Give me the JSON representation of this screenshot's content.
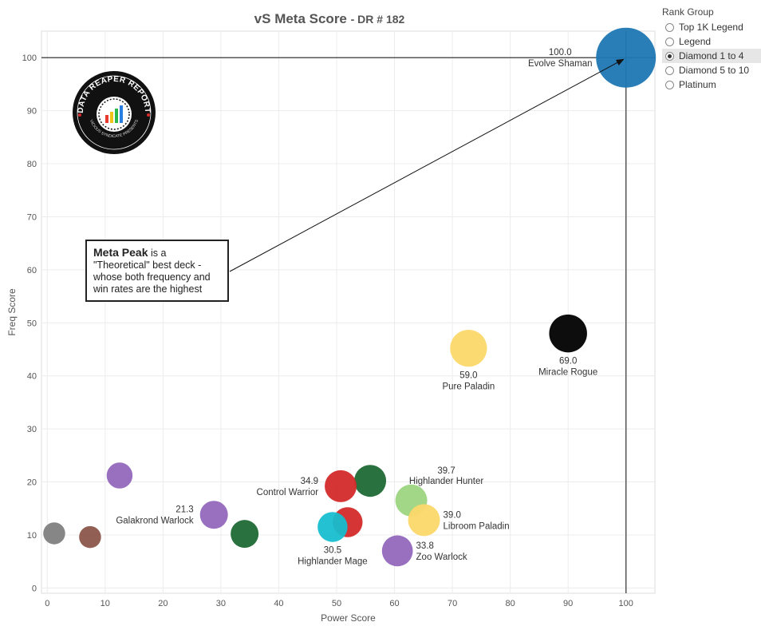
{
  "chart_data": {
    "type": "scatter",
    "title": "vS Meta Score",
    "subtitle": "DR # 182",
    "xlabel": "Power Score",
    "ylabel": "Freq Score",
    "xlim": [
      -1,
      105
    ],
    "ylim": [
      -1,
      105
    ],
    "xticks": [
      0,
      10,
      20,
      30,
      40,
      50,
      60,
      70,
      80,
      90,
      100
    ],
    "yticks": [
      0,
      10,
      20,
      30,
      40,
      50,
      60,
      70,
      80,
      90,
      100
    ],
    "reference_lines": {
      "x": 100,
      "y": 100
    },
    "points": [
      {
        "x": 100,
        "y": 100,
        "color": "#1f77b4",
        "size": 3.0,
        "name": "Evolve Shaman",
        "score": "100.0",
        "label_pos": "upper-left"
      },
      {
        "x": 90,
        "y": 48,
        "color": "#000000",
        "size": 1.9,
        "name": "Miracle Rogue",
        "score": "69.0",
        "label_pos": "below"
      },
      {
        "x": 72.8,
        "y": 45.2,
        "color": "#fcd86a",
        "size": 1.85,
        "name": "Pure Paladin",
        "score": "59.0",
        "label_pos": "below"
      },
      {
        "x": 55.8,
        "y": 20.2,
        "color": "#1e6a35",
        "size": 1.6,
        "name": "",
        "score": "",
        "label_pos": "none"
      },
      {
        "x": 62.9,
        "y": 16.5,
        "color": "#9cd57f",
        "size": 1.6,
        "name": "Highlander Hunter",
        "score": "39.7",
        "label_pos": "above-right"
      },
      {
        "x": 50.7,
        "y": 19.2,
        "color": "#d42a2a",
        "size": 1.6,
        "name": "Control Warrior",
        "score": "34.9",
        "label_pos": "left"
      },
      {
        "x": 65.1,
        "y": 12.8,
        "color": "#fcd86a",
        "size": 1.6,
        "name": "Libroom Paladin",
        "score": "39.0",
        "label_pos": "right"
      },
      {
        "x": 51.9,
        "y": 12.4,
        "color": "#d42a2a",
        "size": 1.5,
        "name": "",
        "score": "",
        "label_pos": "none"
      },
      {
        "x": 49.3,
        "y": 11.5,
        "color": "#17becf",
        "size": 1.5,
        "name": "Highlander Mage",
        "score": "30.5",
        "label_pos": "below"
      },
      {
        "x": 60.5,
        "y": 7.0,
        "color": "#9467bd",
        "size": 1.55,
        "name": "Zoo Warlock",
        "score": "33.8",
        "label_pos": "right"
      },
      {
        "x": 28.8,
        "y": 13.8,
        "color": "#9467bd",
        "size": 1.4,
        "name": "Galakrond Warlock",
        "score": "21.3",
        "label_pos": "left"
      },
      {
        "x": 34.1,
        "y": 10.2,
        "color": "#1e6a35",
        "size": 1.4,
        "name": "",
        "score": "",
        "label_pos": "none"
      },
      {
        "x": 12.5,
        "y": 21.2,
        "color": "#9467bd",
        "size": 1.3,
        "name": "",
        "score": "",
        "label_pos": "none"
      },
      {
        "x": 1.2,
        "y": 10.3,
        "color": "#7f7f7f",
        "size": 1.1,
        "name": "",
        "score": "",
        "label_pos": "none"
      },
      {
        "x": 7.4,
        "y": 9.6,
        "color": "#8c564b",
        "size": 1.1,
        "name": "",
        "score": "",
        "label_pos": "none"
      }
    ],
    "legend": {
      "title": "Rank Group",
      "placement": "top-right",
      "options": [
        "Top 1K Legend",
        "Legend",
        "Diamond 1 to 4",
        "Diamond 5 to 10",
        "Platinum"
      ],
      "selected": "Diamond 1 to 4"
    }
  },
  "annotation": {
    "bold": "Meta Peak",
    "text": " is a \"Theoretical\" best deck - whose both frequency and win rates are the highest"
  },
  "logo": {
    "text_top": "DATA REAPER REPORT",
    "text_bottom": "VICIOUS SYNDICATE PRESENTS"
  }
}
